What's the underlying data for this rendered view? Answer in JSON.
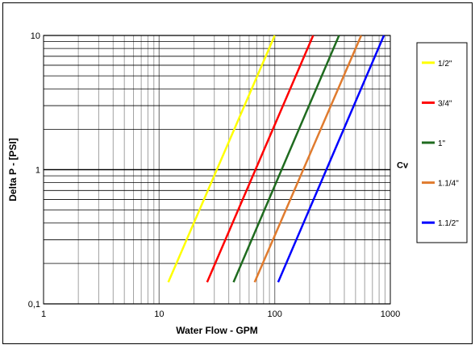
{
  "chart_data": {
    "type": "line",
    "xscale": "log",
    "yscale": "log",
    "xlim": [
      1,
      1000
    ],
    "ylim": [
      0.1,
      10
    ],
    "xlabel": "Water Flow  - GPM",
    "ylabel": "Delta P - [PSI]",
    "x_tick_labels": [
      "1",
      "10",
      "100",
      "1000"
    ],
    "y_tick_labels": [
      "0,1",
      "1",
      "10"
    ],
    "annotation": "Cv",
    "grid": true,
    "legend_position": "right",
    "series": [
      {
        "name": "1/2\"",
        "color": "#ffff00",
        "x": [
          12,
          100
        ],
        "y": [
          0.145,
          10
        ]
      },
      {
        "name": "3/4\"",
        "color": "#ff0000",
        "x": [
          26,
          215
        ],
        "y": [
          0.145,
          10
        ]
      },
      {
        "name": "1\"",
        "color": "#1f6b1f",
        "x": [
          44,
          360
        ],
        "y": [
          0.145,
          10
        ]
      },
      {
        "name": "1.1/4\"",
        "color": "#e07b2e",
        "x": [
          67,
          560
        ],
        "y": [
          0.145,
          10
        ]
      },
      {
        "name": "1.1/2\"",
        "color": "#0000ff",
        "x": [
          107,
          880
        ],
        "y": [
          0.145,
          10
        ]
      }
    ]
  }
}
